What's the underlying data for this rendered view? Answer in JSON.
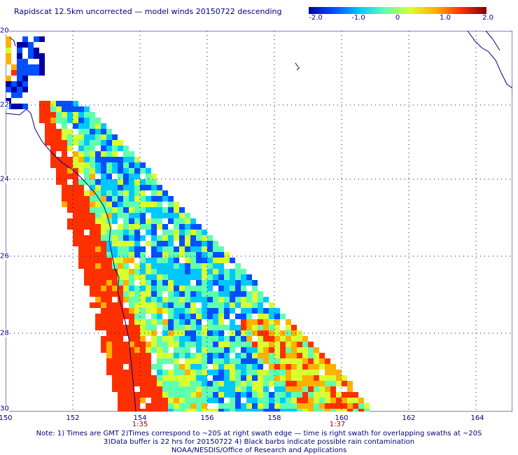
{
  "title": "Rapidscat 12.5km uncorrected — model winds 20150722 descending",
  "colorbar": {
    "labels": [
      "-2.0",
      "-1.0",
      "0",
      "1.0",
      "2.0"
    ],
    "stops": [
      "#0000a0",
      "#0050ff",
      "#00c8ff",
      "#60ffb0",
      "#d8ff30",
      "#ffb000",
      "#ff3000",
      "#800000"
    ]
  },
  "map": {
    "latitude_labels": [
      "20",
      "22",
      "24",
      "26",
      "28",
      "30"
    ],
    "longitude_labels": [
      "150",
      "152",
      "154",
      "156",
      "158",
      "160",
      "162",
      "164"
    ],
    "time_labels": [
      "1:35",
      "1:37"
    ],
    "land_outline_color": "#000080",
    "grid_color": "#000080"
  },
  "notes": [
    "Note: 1) Times are GMT 2)Times correspond to ~20S at right swath edge — time is right swath for overlapping swaths at ~20S",
    "3)Data buffer is 22 hrs for 20150722 4) Black barbs indicate possible rain contamination",
    "NOAA/NESDIS/Office of Research and Applications"
  ]
}
